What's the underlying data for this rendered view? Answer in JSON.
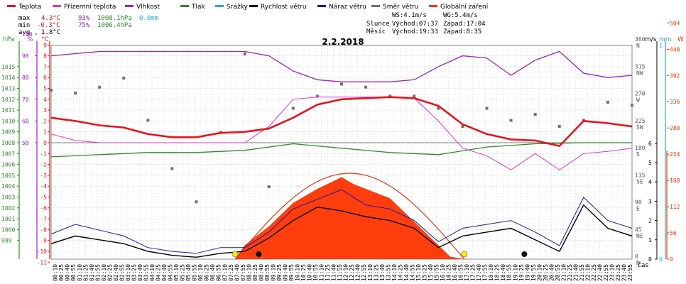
{
  "chart_data": {
    "type": "line",
    "title": "2.2.2018",
    "xlabel": "čas",
    "legend": [
      {
        "name": "Teplota",
        "color": "#e8141c"
      },
      {
        "name": "Přízemní teplota",
        "color": "#dd33dd"
      },
      {
        "name": "Vlhkost",
        "color": "#9922bb"
      },
      {
        "name": "Tlak",
        "color": "#2e8b2e"
      },
      {
        "name": "Srážky",
        "color": "#22aacc"
      },
      {
        "name": "Rychlost větru",
        "color": "#000000"
      },
      {
        "name": "Náraz větru",
        "color": "#1a1aa0"
      },
      {
        "name": "Směr větru",
        "color": "#707070"
      },
      {
        "name": "Globální záření",
        "color": "#ff3300"
      }
    ],
    "stats": {
      "rows": [
        {
          "label": "max",
          "temp": "4.3°C",
          "hum": "93%",
          "press": "1008.1hPa",
          "rain": "0.0mm"
        },
        {
          "label": "min",
          "temp": "-0.3°C",
          "hum": "75%",
          "press": "1006.4hPa",
          "rain": ""
        },
        {
          "label": "avg",
          "temp": "1.8°C",
          "hum": "",
          "press": "",
          "rain": ""
        }
      ],
      "ws": "WS:4.1m/s",
      "wg": "WG:5.4m/s",
      "sun_label": "Slunce",
      "sun_rise": "Východ:07:37",
      "sun_set": "Západ:17:04",
      "moon_label": "Měsíc",
      "moon_rise": "Východ:19:33",
      "moon_set": "Západ:8:35"
    },
    "axes": {
      "hpa": {
        "title": "hPa",
        "ticks": [
          "1015",
          "1014",
          "1013",
          "1012",
          "1011",
          "1010",
          "1009",
          "1008",
          "1007",
          "1006",
          "1005",
          "1004",
          "1003",
          "1002",
          "1001",
          "1000",
          "999"
        ]
      },
      "percent": {
        "title": "%",
        "ticks": [
          "100",
          "90",
          "80",
          "70",
          "60",
          "50"
        ]
      },
      "celsius": {
        "title": "°C",
        "ticks": [
          "9",
          "8",
          "7",
          "6",
          "5",
          "4",
          "3",
          "2",
          "1",
          "0",
          "-1",
          "-2",
          "-3",
          "-4",
          "-5",
          "-6",
          "-7",
          "-8",
          "-9",
          "-10",
          "-11"
        ]
      },
      "direction": {
        "ticks": [
          "360",
          "315",
          "270",
          "225",
          "180",
          "135",
          "90",
          "45",
          "0"
        ],
        "labels": [
          "N",
          "NW",
          "W",
          "SW",
          "S",
          "SE",
          "E",
          "NE",
          "N"
        ]
      },
      "ms": {
        "title": "m/s",
        "ticks": [
          "6",
          "5",
          "4",
          "3",
          "2",
          "1",
          "0"
        ]
      },
      "mm": {
        "title": "mm",
        "ticks": [
          "1",
          "0"
        ]
      },
      "w": {
        "title": "W",
        "ticks": [
          "504",
          "448",
          "392",
          "336",
          "280",
          "224",
          "168",
          "112",
          "56",
          "0"
        ]
      }
    },
    "x_ticks": [
      "00:10",
      "00:25",
      "00:40",
      "00:55",
      "01:10",
      "01:25",
      "01:40",
      "01:55",
      "02:10",
      "02:25",
      "02:40",
      "02:55",
      "03:10",
      "03:25",
      "03:40",
      "03:55",
      "04:10",
      "04:25",
      "04:40",
      "04:55",
      "05:10",
      "05:25",
      "05:40",
      "05:55",
      "06:10",
      "06:25",
      "06:40",
      "06:55",
      "07:10",
      "07:25",
      "07:40",
      "07:55",
      "08:10",
      "08:25",
      "08:40",
      "08:55",
      "09:10",
      "09:25",
      "09:40",
      "09:55",
      "10:10",
      "10:25",
      "10:40",
      "10:55",
      "11:10",
      "11:25",
      "11:40",
      "11:55",
      "12:10",
      "12:25",
      "12:40",
      "12:55",
      "13:10",
      "13:25",
      "13:40",
      "13:55",
      "14:10",
      "14:25",
      "14:40",
      "14:55",
      "15:10",
      "15:25",
      "15:40",
      "15:55",
      "16:10",
      "16:25",
      "16:40",
      "16:55",
      "17:10",
      "17:25",
      "17:40",
      "17:55",
      "18:10",
      "18:25",
      "18:40",
      "18:55",
      "19:10",
      "19:25",
      "19:40",
      "19:55",
      "20:10",
      "20:25",
      "20:40",
      "20:55",
      "21:10",
      "21:25",
      "21:40",
      "21:55",
      "22:10",
      "22:25",
      "22:40",
      "22:55",
      "23:10",
      "23:25",
      "23:40",
      "23:55"
    ],
    "series": [
      {
        "name": "Teplota",
        "unit": "°C",
        "x": [
          0,
          1,
          2,
          3,
          4,
          5,
          6,
          7,
          8,
          9,
          10,
          11,
          12,
          13,
          14,
          15,
          16,
          17,
          18,
          19,
          20,
          21,
          22,
          23,
          24
        ],
        "values": [
          2.3,
          2.0,
          1.6,
          1.4,
          0.8,
          0.5,
          0.5,
          0.9,
          1.0,
          1.3,
          2.3,
          3.5,
          4.0,
          4.1,
          4.2,
          4.1,
          3.4,
          1.7,
          0.8,
          0.3,
          0.2,
          -0.3,
          2.0,
          1.8,
          1.5
        ]
      },
      {
        "name": "Přízemní teplota",
        "unit": "°C",
        "x": [
          0,
          1,
          2,
          3,
          4,
          5,
          6,
          7,
          8,
          9,
          10,
          11,
          12,
          13,
          14,
          15,
          16,
          17,
          18,
          19,
          20,
          21,
          22,
          23,
          24
        ],
        "values": [
          0.8,
          0.2,
          0.0,
          0.0,
          0.0,
          0.0,
          0.0,
          0.0,
          0.0,
          1.5,
          4.0,
          4.2,
          4.2,
          4.2,
          4.2,
          4.1,
          2.0,
          -0.5,
          -1.2,
          -2.5,
          -1.0,
          -2.5,
          -1.0,
          -0.8,
          -0.5
        ]
      },
      {
        "name": "Vlhkost",
        "unit": "%",
        "x": [
          0,
          1,
          2,
          3,
          4,
          5,
          6,
          7,
          8,
          9,
          10,
          11,
          12,
          13,
          14,
          15,
          16,
          17,
          18,
          19,
          20,
          21,
          22,
          23,
          24
        ],
        "values": [
          90,
          91,
          92,
          92,
          92,
          92,
          92,
          92,
          92,
          90,
          83,
          79,
          78,
          78,
          78,
          79,
          85,
          90,
          89,
          81,
          88,
          92,
          82,
          80,
          81
        ]
      },
      {
        "name": "Tlak",
        "unit": "hPa",
        "x": [
          0,
          2,
          4,
          6,
          8,
          10,
          12,
          14,
          16,
          18,
          20,
          22,
          24
        ],
        "values": [
          1006.7,
          1006.9,
          1007.1,
          1007.1,
          1007.3,
          1007.9,
          1007.5,
          1007.1,
          1006.9,
          1007.6,
          1007.9,
          1008.0,
          1008.0
        ]
      },
      {
        "name": "Rychlost větru",
        "unit": "m/s",
        "x": [
          0,
          1,
          2,
          3,
          4,
          5,
          6,
          7,
          8,
          9,
          10,
          11,
          12,
          13,
          14,
          15,
          16,
          17,
          18,
          19,
          20,
          21,
          22,
          23,
          24
        ],
        "values": [
          0.8,
          1.2,
          1.0,
          0.8,
          0.4,
          0.2,
          0.1,
          0.3,
          0.4,
          1.1,
          2.0,
          2.7,
          2.5,
          2.2,
          2.0,
          1.6,
          0.6,
          1.2,
          1.4,
          1.6,
          1.0,
          0.4,
          2.8,
          1.6,
          1.2
        ]
      },
      {
        "name": "Náraz větru",
        "unit": "m/s",
        "x": [
          0,
          1,
          2,
          3,
          4,
          5,
          6,
          7,
          8,
          9,
          10,
          11,
          12,
          13,
          14,
          15,
          16,
          17,
          18,
          19,
          20,
          21,
          22,
          23,
          24
        ],
        "values": [
          1.3,
          1.8,
          1.5,
          1.2,
          0.6,
          0.4,
          0.3,
          0.6,
          0.6,
          1.4,
          2.6,
          3.1,
          3.6,
          2.8,
          2.6,
          2.0,
          0.9,
          1.6,
          1.8,
          2.0,
          1.4,
          0.7,
          3.2,
          2.0,
          1.6
        ]
      },
      {
        "name": "Globální záření",
        "unit": "W",
        "x": [
          7.6,
          8,
          9,
          10,
          11,
          12,
          12.5,
          13,
          14,
          15,
          16,
          16.5,
          17.1
        ],
        "values": [
          0,
          30,
          70,
          120,
          150,
          175,
          160,
          150,
          130,
          80,
          30,
          5,
          0
        ]
      },
      {
        "name": "Směr větru",
        "unit": "°",
        "x": [
          0,
          1,
          2,
          3,
          4,
          5,
          6,
          7,
          8,
          9,
          10,
          11,
          12,
          13,
          14,
          15,
          16,
          17,
          18,
          19,
          20,
          21,
          22,
          23,
          24
        ],
        "values": [
          280,
          275,
          285,
          300,
          230,
          150,
          95,
          210,
          340,
          120,
          250,
          270,
          290,
          285,
          270,
          270,
          250,
          220,
          250,
          230,
          240,
          220,
          230,
          260,
          255
        ]
      }
    ],
    "markers": [
      {
        "name": "sunrise",
        "x": 7.6,
        "kind": "sun"
      },
      {
        "name": "sunset",
        "x": 17.07,
        "kind": "sun"
      },
      {
        "name": "moonset",
        "x": 8.58,
        "kind": "moon"
      },
      {
        "name": "moonrise",
        "x": 19.55,
        "kind": "moon"
      }
    ]
  }
}
